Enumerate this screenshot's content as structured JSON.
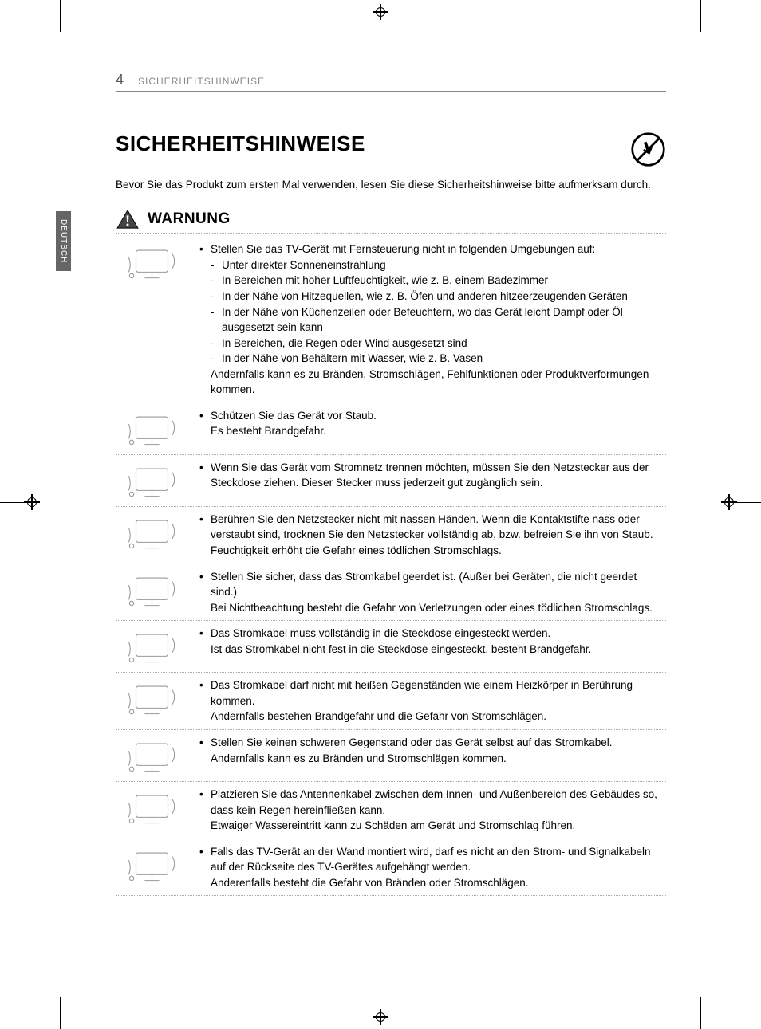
{
  "page": {
    "number": "4",
    "header_title": "SICHERHEITSHINWEISE",
    "side_tab": "DEUTSCH"
  },
  "main": {
    "title": "SICHERHEITSHINWEISE",
    "intro": "Bevor Sie das Produkt zum ersten Mal verwenden, lesen Sie diese Sicherheitshinweise bitte aufmerksam durch.",
    "warning_label": "WARNUNG"
  },
  "warnings": [
    {
      "icon": "tv-placement",
      "main_text": "Stellen Sie das TV-Gerät mit Fernsteuerung nicht in folgenden Umgebungen auf:",
      "sub_items": [
        "Unter direkter Sonneneinstrahlung",
        "In Bereichen mit hoher Luftfeuchtigkeit, wie z. B. einem Badezimmer",
        "In der Nähe von Hitzequellen, wie z. B. Öfen und anderen hitzeerzeugenden Geräten",
        "In der Nähe von Küchenzeilen oder Befeuchtern, wo das Gerät leicht Dampf oder Öl ausgesetzt sein kann",
        "In Bereichen, die Regen oder Wind ausgesetzt sind",
        "In der Nähe von Behältern mit Wasser, wie z. B. Vasen"
      ],
      "trailing_text": "Andernfalls kann es zu Bränden, Stromschlägen, Fehlfunktionen oder Produktverformungen kommen."
    },
    {
      "icon": "dust",
      "main_text": "Schützen Sie das Gerät vor Staub.",
      "trailing_text": "Es besteht Brandgefahr."
    },
    {
      "icon": "unplug",
      "main_text": "Wenn Sie das Gerät vom Stromnetz trennen möchten, müssen Sie den Netzstecker aus der Steckdose ziehen. Dieser Stecker muss jederzeit gut zugänglich sein."
    },
    {
      "icon": "wet-hands",
      "main_text": "Berühren Sie den Netzstecker nicht mit nassen Händen. Wenn die Kontaktstifte nass oder verstaubt sind, trocknen Sie den Netzstecker vollständig ab, bzw. befreien Sie ihn von Staub.",
      "trailing_text": "Feuchtigkeit erhöht die Gefahr eines tödlichen Stromschlags."
    },
    {
      "icon": "grounding",
      "main_text": "Stellen Sie sicher, dass das Stromkabel geerdet ist. (Außer bei Geräten, die nicht geerdet sind.)",
      "trailing_text": "Bei Nichtbeachtung besteht die Gefahr von Verletzungen oder eines tödlichen Stromschlags."
    },
    {
      "icon": "plug-fully",
      "main_text": "Das Stromkabel muss vollständig in die Steckdose eingesteckt werden.",
      "trailing_text": "Ist das Stromkabel nicht fest in die Steckdose eingesteckt, besteht Brandgefahr."
    },
    {
      "icon": "heat-source",
      "main_text": "Das Stromkabel darf nicht mit heißen Gegenständen wie einem Heizkörper in Berührung kommen.",
      "trailing_text": "Andernfalls bestehen Brandgefahr und die Gefahr von Stromschlägen."
    },
    {
      "icon": "heavy-object",
      "main_text": "Stellen Sie keinen schweren Gegenstand oder das Gerät selbst auf das Stromkabel.",
      "trailing_text": "Andernfalls kann es zu Bränden und Stromschlägen kommen."
    },
    {
      "icon": "antenna",
      "main_text": "Platzieren Sie das Antennenkabel zwischen dem Innen- und Außenbereich des Gebäudes so, dass kein Regen hereinfließen kann.",
      "trailing_text": "Etwaiger Wassereintritt kann zu Schäden am Gerät und Stromschlag führen."
    },
    {
      "icon": "wall-mount",
      "main_text": "Falls das TV-Gerät an der Wand montiert wird, darf es nicht an den Strom- und Signalkabeln auf der Rückseite des TV-Gerätes aufgehängt werden.",
      "trailing_text": "Anderenfalls besteht die Gefahr von Bränden oder Stromschlägen."
    }
  ],
  "style": {
    "text_color": "#000000",
    "muted_color": "#888888",
    "border_color": "#aaaaaa",
    "background": "#ffffff",
    "body_fontsize": 13.5,
    "title_fontsize": 26,
    "warning_fontsize": 19
  }
}
